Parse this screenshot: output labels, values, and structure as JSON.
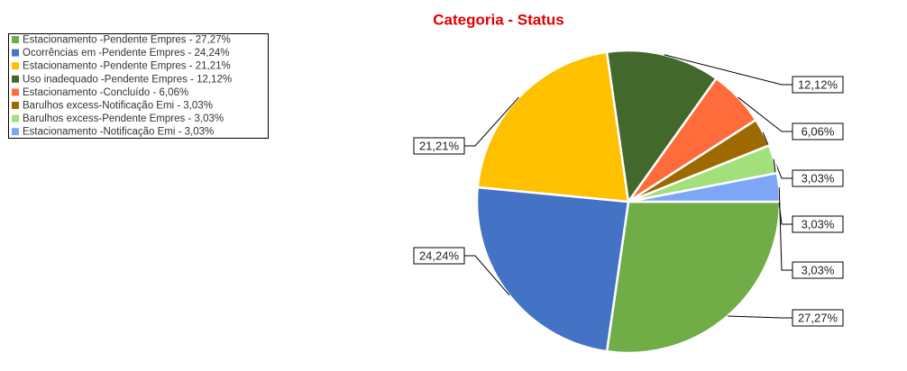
{
  "chart_data": {
    "type": "pie",
    "title": "Categoria - Status",
    "categories": [
      "Estacionamento -Pendente Empres - 27,27%",
      "Ocorrências em -Pendente Empres - 24,24%",
      "Estacionamento -Pendente Empres - 21,21%",
      "Uso inadequado -Pendente Empres - 12,12%",
      "Estacionamento -Concluído - 6,06%",
      "Barulhos excess-Notificação Emi - 3,03%",
      "Barulhos excess-Pendente Empres - 3,03%",
      "Estacionamento -Notificação Emi - 3,03%"
    ],
    "values": [
      27.27,
      24.24,
      21.21,
      12.12,
      6.06,
      3.03,
      3.03,
      3.03
    ],
    "value_labels": [
      "27,27%",
      "24,24%",
      "21,21%",
      "12,12%",
      "6,06%",
      "3,03%",
      "3,03%",
      "3,03%"
    ],
    "colors": [
      "#70ad47",
      "#4472c4",
      "#ffc000",
      "#43682b",
      "#ff6b3a",
      "#9e6a00",
      "#a3df7a",
      "#7ea6f7"
    ],
    "legend": "top-left"
  }
}
